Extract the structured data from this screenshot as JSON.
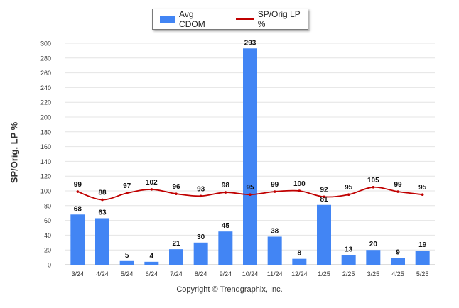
{
  "chart_data": {
    "type": "bar",
    "categories": [
      "3/24",
      "4/24",
      "5/24",
      "6/24",
      "7/24",
      "8/24",
      "9/24",
      "10/24",
      "11/24",
      "12/24",
      "1/25",
      "2/25",
      "3/25",
      "4/25",
      "5/25"
    ],
    "series": [
      {
        "name": "Avg CDOM",
        "kind": "bar",
        "color": "#4285f4",
        "values": [
          68,
          63,
          5,
          4,
          21,
          30,
          45,
          293,
          38,
          8,
          81,
          13,
          20,
          9,
          19
        ]
      },
      {
        "name": "SP/Orig LP %",
        "kind": "line",
        "color": "#c00000",
        "values": [
          99,
          88,
          97,
          102,
          96,
          93,
          98,
          95,
          99,
          100,
          92,
          95,
          105,
          99,
          95
        ]
      }
    ],
    "ylabel": "SP/Orig. LP %",
    "ylim": [
      0,
      300
    ],
    "yticks": [
      0,
      20,
      40,
      60,
      80,
      100,
      120,
      140,
      160,
      180,
      200,
      220,
      240,
      260,
      280,
      300
    ],
    "grid": true,
    "legend_position": "top-center"
  },
  "footer": {
    "credit": "Copyright © Trendgraphix, Inc."
  }
}
